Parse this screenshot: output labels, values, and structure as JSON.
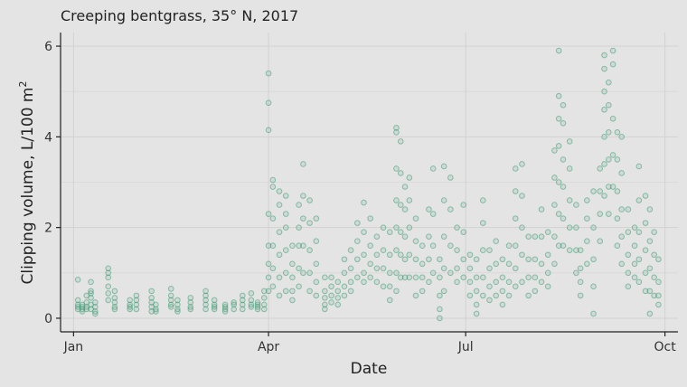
{
  "chart_data": {
    "type": "scatter",
    "title": "Creeping bentgrass, 35° N, 2017",
    "xlabel": "Date",
    "ylabel": "Clipping volume, L/100 m",
    "ylabel_superscript": "2",
    "xlim": [
      "2016-12-26",
      "2017-10-07"
    ],
    "ylim": [
      -0.3,
      6.3
    ],
    "x_ticks": [
      {
        "date": "2017-01-01",
        "label": "Jan"
      },
      {
        "date": "2017-04-01",
        "label": "Apr"
      },
      {
        "date": "2017-07-01",
        "label": "Jul"
      },
      {
        "date": "2017-10-01",
        "label": "Oct"
      }
    ],
    "y_ticks": [
      0,
      2,
      4,
      6
    ],
    "grid": true,
    "point_color": "#3a9a72",
    "samples": [
      {
        "date": "2017-01-03",
        "values": [
          0.85,
          0.4,
          0.3,
          0.25,
          0.2
        ]
      },
      {
        "date": "2017-01-05",
        "values": [
          0.3,
          0.25,
          0.2,
          0.15
        ]
      },
      {
        "date": "2017-01-07",
        "values": [
          0.5,
          0.35,
          0.25,
          0.2
        ]
      },
      {
        "date": "2017-01-09",
        "values": [
          0.8,
          0.6,
          0.55,
          0.45,
          0.3,
          0.2
        ]
      },
      {
        "date": "2017-01-11",
        "values": [
          0.35,
          0.25,
          0.15,
          0.1
        ]
      },
      {
        "date": "2017-01-17",
        "values": [
          1.1,
          1.0,
          0.9,
          0.7,
          0.55,
          0.4
        ]
      },
      {
        "date": "2017-01-20",
        "values": [
          0.6,
          0.45,
          0.35,
          0.25,
          0.2
        ]
      },
      {
        "date": "2017-01-27",
        "values": [
          0.4,
          0.3,
          0.25,
          0.2
        ]
      },
      {
        "date": "2017-01-30",
        "values": [
          0.5,
          0.4,
          0.3,
          0.2
        ]
      },
      {
        "date": "2017-02-06",
        "values": [
          0.6,
          0.45,
          0.35,
          0.25,
          0.15
        ]
      },
      {
        "date": "2017-02-08",
        "values": [
          0.3,
          0.2,
          0.15
        ]
      },
      {
        "date": "2017-02-15",
        "values": [
          0.65,
          0.5,
          0.4,
          0.3,
          0.25
        ]
      },
      {
        "date": "2017-02-18",
        "values": [
          0.4,
          0.3,
          0.2,
          0.15
        ]
      },
      {
        "date": "2017-02-24",
        "values": [
          0.45,
          0.35,
          0.25,
          0.2
        ]
      },
      {
        "date": "2017-03-03",
        "values": [
          0.6,
          0.5,
          0.4,
          0.3,
          0.2
        ]
      },
      {
        "date": "2017-03-07",
        "values": [
          0.4,
          0.3,
          0.25,
          0.2
        ]
      },
      {
        "date": "2017-03-12",
        "values": [
          0.3,
          0.25,
          0.2,
          0.15
        ]
      },
      {
        "date": "2017-03-16",
        "values": [
          0.35,
          0.3,
          0.2
        ]
      },
      {
        "date": "2017-03-20",
        "values": [
          0.5,
          0.4,
          0.3,
          0.2
        ]
      },
      {
        "date": "2017-03-24",
        "values": [
          0.55,
          0.4,
          0.3,
          0.25
        ]
      },
      {
        "date": "2017-03-27",
        "values": [
          0.35,
          0.3,
          0.25,
          0.2
        ]
      },
      {
        "date": "2017-03-30",
        "values": [
          0.6,
          0.45,
          0.3,
          0.2
        ]
      },
      {
        "date": "2017-04-01",
        "values": [
          5.4,
          4.75,
          4.15,
          2.3,
          1.6,
          1.2,
          0.9,
          0.6
        ]
      },
      {
        "date": "2017-04-03",
        "values": [
          3.05,
          2.9,
          2.2,
          1.6,
          1.1,
          0.7
        ]
      },
      {
        "date": "2017-04-06",
        "values": [
          2.8,
          2.5,
          1.9,
          1.4,
          0.9,
          0.5
        ]
      },
      {
        "date": "2017-04-09",
        "values": [
          2.7,
          2.3,
          2.0,
          1.5,
          1.0,
          0.6
        ]
      },
      {
        "date": "2017-04-12",
        "values": [
          1.6,
          1.2,
          0.9,
          0.6,
          0.4
        ]
      },
      {
        "date": "2017-04-15",
        "values": [
          2.5,
          2.0,
          1.6,
          1.1,
          0.7
        ]
      },
      {
        "date": "2017-04-17",
        "values": [
          3.4,
          2.7,
          2.2,
          1.6,
          1.0
        ]
      },
      {
        "date": "2017-04-20",
        "values": [
          2.6,
          2.1,
          1.5,
          1.0,
          0.6
        ]
      },
      {
        "date": "2017-04-23",
        "values": [
          2.2,
          1.7,
          1.2,
          0.8,
          0.5
        ]
      },
      {
        "date": "2017-04-27",
        "values": [
          0.9,
          0.6,
          0.45,
          0.3,
          0.2
        ]
      },
      {
        "date": "2017-04-30",
        "values": [
          0.9,
          0.7,
          0.5,
          0.35
        ]
      },
      {
        "date": "2017-05-03",
        "values": [
          0.8,
          0.6,
          0.45,
          0.3
        ]
      },
      {
        "date": "2017-05-06",
        "values": [
          1.3,
          1.0,
          0.7,
          0.5
        ]
      },
      {
        "date": "2017-05-09",
        "values": [
          1.5,
          1.1,
          0.8,
          0.6
        ]
      },
      {
        "date": "2017-05-12",
        "values": [
          2.1,
          1.7,
          1.3,
          0.9
        ]
      },
      {
        "date": "2017-05-15",
        "values": [
          2.55,
          1.9,
          1.4,
          1.0,
          0.8
        ]
      },
      {
        "date": "2017-05-18",
        "values": [
          2.2,
          1.6,
          1.2,
          0.9
        ]
      },
      {
        "date": "2017-05-21",
        "values": [
          1.8,
          1.4,
          1.1,
          0.8
        ]
      },
      {
        "date": "2017-05-24",
        "values": [
          2.0,
          1.5,
          1.1,
          0.7
        ]
      },
      {
        "date": "2017-05-27",
        "values": [
          1.9,
          1.4,
          1.0,
          0.7,
          0.4
        ]
      },
      {
        "date": "2017-05-30",
        "values": [
          4.2,
          4.1,
          3.3,
          2.6,
          2.0,
          1.5,
          1.0,
          0.6
        ]
      },
      {
        "date": "2017-06-01",
        "values": [
          3.9,
          3.2,
          2.5,
          1.9,
          1.4,
          0.9
        ]
      },
      {
        "date": "2017-06-03",
        "values": [
          2.9,
          2.4,
          1.8,
          1.3,
          0.9
        ]
      },
      {
        "date": "2017-06-05",
        "values": [
          3.1,
          2.6,
          2.0,
          1.4,
          0.9
        ]
      },
      {
        "date": "2017-06-08",
        "values": [
          2.2,
          1.7,
          1.3,
          0.9,
          0.5
        ]
      },
      {
        "date": "2017-06-11",
        "values": [
          1.6,
          1.2,
          0.9,
          0.6
        ]
      },
      {
        "date": "2017-06-14",
        "values": [
          2.4,
          1.8,
          1.3,
          0.8
        ]
      },
      {
        "date": "2017-06-16",
        "values": [
          3.3,
          2.3,
          1.6,
          1.0
        ]
      },
      {
        "date": "2017-06-19",
        "values": [
          1.3,
          0.9,
          0.5,
          0.2,
          0.0
        ]
      },
      {
        "date": "2017-06-21",
        "values": [
          3.35,
          2.6,
          1.8,
          1.1,
          0.6
        ]
      },
      {
        "date": "2017-06-24",
        "values": [
          3.1,
          2.4,
          1.6,
          1.0
        ]
      },
      {
        "date": "2017-06-27",
        "values": [
          2.0,
          1.5,
          1.1,
          0.8
        ]
      },
      {
        "date": "2017-06-30",
        "values": [
          2.5,
          1.9,
          1.3,
          0.9
        ]
      },
      {
        "date": "2017-07-03",
        "values": [
          1.4,
          1.1,
          0.8,
          0.5
        ]
      },
      {
        "date": "2017-07-06",
        "values": [
          1.3,
          0.9,
          0.6,
          0.3,
          0.1
        ]
      },
      {
        "date": "2017-07-09",
        "values": [
          2.6,
          2.1,
          1.5,
          0.9,
          0.5
        ]
      },
      {
        "date": "2017-07-12",
        "values": [
          1.5,
          1.1,
          0.7,
          0.4
        ]
      },
      {
        "date": "2017-07-15",
        "values": [
          1.7,
          1.2,
          0.8,
          0.5
        ]
      },
      {
        "date": "2017-07-18",
        "values": [
          1.3,
          0.9,
          0.6,
          0.3
        ]
      },
      {
        "date": "2017-07-21",
        "values": [
          1.6,
          1.2,
          0.8,
          0.5
        ]
      },
      {
        "date": "2017-07-24",
        "values": [
          3.3,
          2.8,
          2.2,
          1.6,
          1.1,
          0.7
        ]
      },
      {
        "date": "2017-07-27",
        "values": [
          3.4,
          2.7,
          2.0,
          1.4,
          0.8
        ]
      },
      {
        "date": "2017-07-30",
        "values": [
          1.8,
          1.3,
          0.9,
          0.5
        ]
      },
      {
        "date": "2017-08-02",
        "values": [
          1.8,
          1.3,
          0.9,
          0.6
        ]
      },
      {
        "date": "2017-08-05",
        "values": [
          2.4,
          1.8,
          1.2,
          0.8
        ]
      },
      {
        "date": "2017-08-08",
        "values": [
          1.9,
          1.4,
          1.0,
          0.7
        ]
      },
      {
        "date": "2017-08-11",
        "values": [
          3.7,
          3.1,
          2.5,
          1.8,
          1.2
        ]
      },
      {
        "date": "2017-08-13",
        "values": [
          5.9,
          4.9,
          4.4,
          3.8,
          3.0,
          2.3,
          1.6
        ]
      },
      {
        "date": "2017-08-15",
        "values": [
          4.7,
          4.3,
          3.5,
          2.9,
          2.2,
          1.6
        ]
      },
      {
        "date": "2017-08-18",
        "values": [
          3.9,
          3.3,
          2.6,
          2.0,
          1.5
        ]
      },
      {
        "date": "2017-08-21",
        "values": [
          2.5,
          2.0,
          1.5,
          1.0
        ]
      },
      {
        "date": "2017-08-23",
        "values": [
          1.5,
          1.1,
          0.8,
          0.5
        ]
      },
      {
        "date": "2017-08-26",
        "values": [
          2.6,
          2.2,
          1.7,
          1.2
        ]
      },
      {
        "date": "2017-08-29",
        "values": [
          2.8,
          2.0,
          1.3,
          0.7,
          0.1
        ]
      },
      {
        "date": "2017-09-01",
        "values": [
          3.3,
          2.8,
          2.3,
          1.7
        ]
      },
      {
        "date": "2017-09-03",
        "values": [
          5.8,
          5.5,
          5.0,
          4.6,
          4.0,
          3.4,
          2.7
        ]
      },
      {
        "date": "2017-09-05",
        "values": [
          5.2,
          4.7,
          4.1,
          3.5,
          2.9,
          2.3
        ]
      },
      {
        "date": "2017-09-07",
        "values": [
          5.9,
          5.6,
          4.4,
          3.6,
          2.9
        ]
      },
      {
        "date": "2017-09-09",
        "values": [
          4.1,
          3.5,
          2.8,
          2.2,
          1.6
        ]
      },
      {
        "date": "2017-09-11",
        "values": [
          4.0,
          3.2,
          2.4,
          1.8,
          1.2
        ]
      },
      {
        "date": "2017-09-14",
        "values": [
          2.4,
          1.9,
          1.4,
          1.0,
          0.7
        ]
      },
      {
        "date": "2017-09-17",
        "values": [
          2.0,
          1.6,
          1.2,
          0.9
        ]
      },
      {
        "date": "2017-09-19",
        "values": [
          3.35,
          2.6,
          1.9,
          1.3,
          0.8
        ]
      },
      {
        "date": "2017-09-22",
        "values": [
          2.7,
          2.1,
          1.5,
          1.0,
          0.6
        ]
      },
      {
        "date": "2017-09-24",
        "values": [
          2.4,
          1.7,
          1.1,
          0.6,
          0.1
        ]
      },
      {
        "date": "2017-09-26",
        "values": [
          1.9,
          1.4,
          0.9,
          0.5
        ]
      },
      {
        "date": "2017-09-28",
        "values": [
          1.3,
          0.8,
          0.5,
          0.3
        ]
      }
    ]
  }
}
